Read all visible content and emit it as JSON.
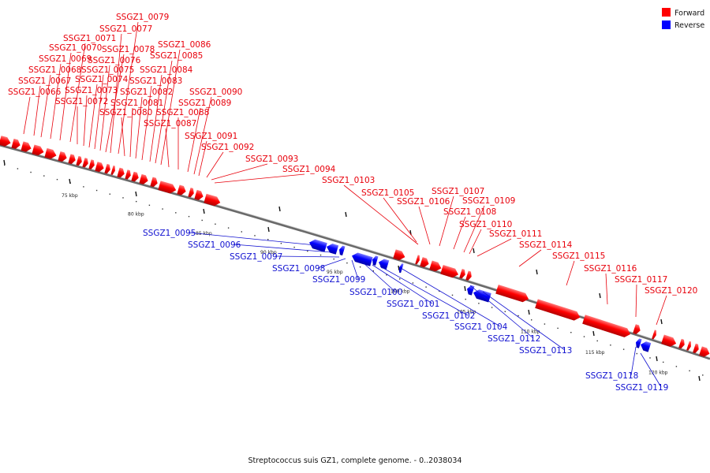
{
  "legend": {
    "forward_label": "Forward",
    "reverse_label": "Reverse",
    "forward_color": "#ff0000",
    "reverse_color": "#0000ff"
  },
  "caption": "Streptococcus suis GZ1, complete genome. - 0..2038034",
  "axis_ticks": [
    "75 kbp",
    "80 kbp",
    "85 kbp",
    "90 kbp",
    "95 kbp",
    "100 kbp",
    "105 kbp",
    "110 kbp",
    "115 kbp",
    "120 kbp"
  ],
  "forward_genes": [
    "SSGZ1_0066",
    "SSGZ1_0067",
    "SSGZ1_0068",
    "SSGZ1_0069",
    "SSGZ1_0070",
    "SSGZ1_0071",
    "SSGZ1_0072",
    "SSGZ1_0073",
    "SSGZ1_0074",
    "SSGZ1_0075",
    "SSGZ1_0076",
    "SSGZ1_0077",
    "SSGZ1_0078",
    "SSGZ1_0079",
    "SSGZ1_0080",
    "SSGZ1_0081",
    "SSGZ1_0082",
    "SSGZ1_0083",
    "SSGZ1_0084",
    "SSGZ1_0085",
    "SSGZ1_0086",
    "SSGZ1_0087",
    "SSGZ1_0088",
    "SSGZ1_0089",
    "SSGZ1_0090",
    "SSGZ1_0091",
    "SSGZ1_0092",
    "SSGZ1_0093",
    "SSGZ1_0094",
    "SSGZ1_0103",
    "SSGZ1_0105",
    "SSGZ1_0106",
    "SSGZ1_0107",
    "SSGZ1_0108",
    "SSGZ1_0109",
    "SSGZ1_0110",
    "SSGZ1_0111",
    "SSGZ1_0114",
    "SSGZ1_0115",
    "SSGZ1_0116",
    "SSGZ1_0117",
    "SSGZ1_0120"
  ],
  "reverse_genes": [
    "SSGZ1_0095",
    "SSGZ1_0096",
    "SSGZ1_0097",
    "SSGZ1_0098",
    "SSGZ1_0099",
    "SSGZ1_0100",
    "SSGZ1_0101",
    "SSGZ1_0102",
    "SSGZ1_0104",
    "SSGZ1_0112",
    "SSGZ1_0113",
    "SSGZ1_0118",
    "SSGZ1_0119"
  ]
}
